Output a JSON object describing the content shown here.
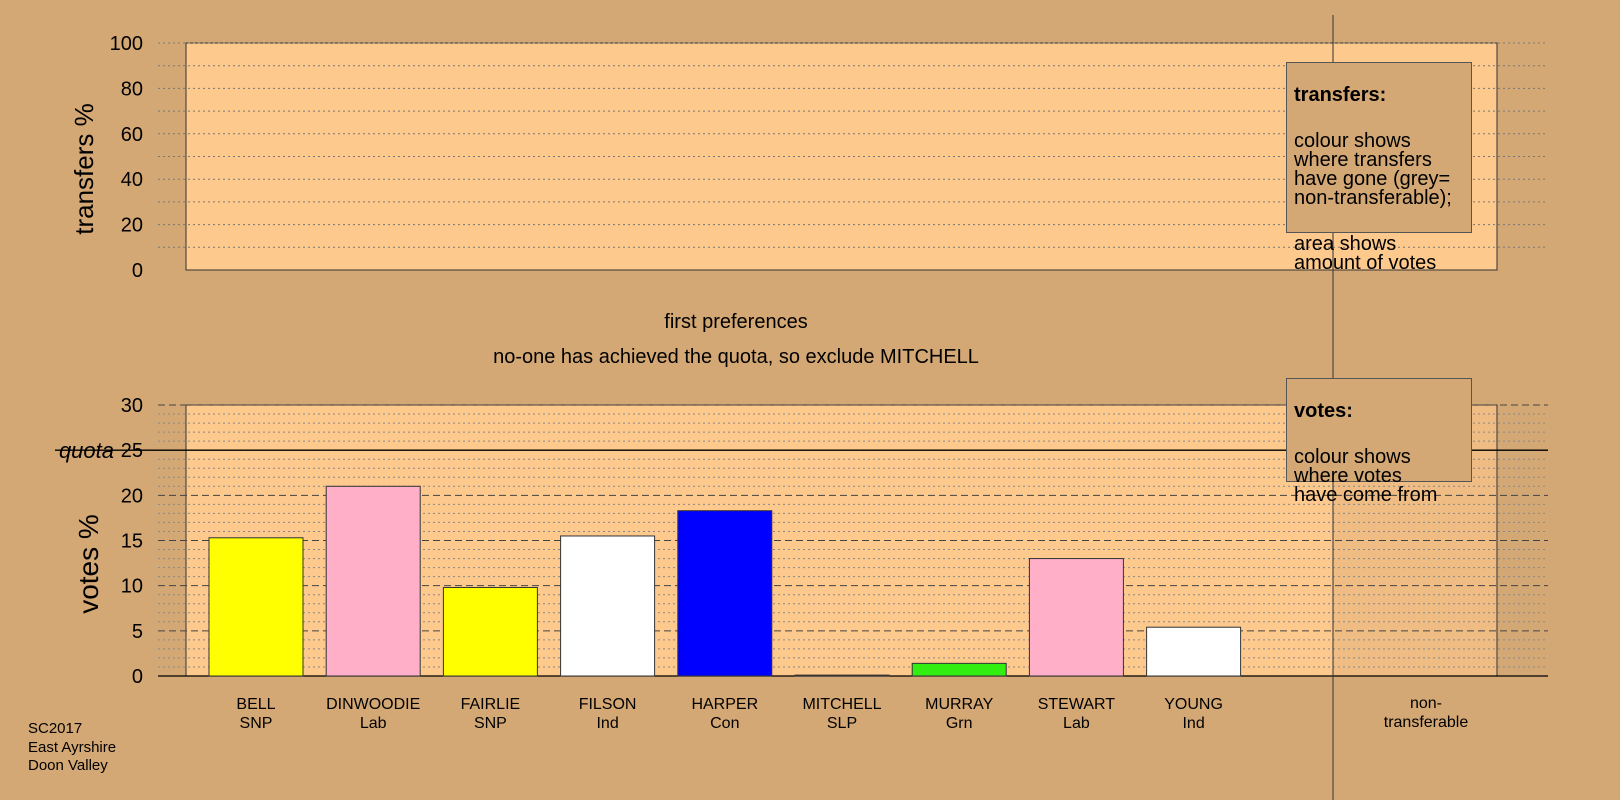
{
  "top_panel": {
    "ylabel": "transfers %",
    "ticks": [
      0,
      20,
      40,
      60,
      80,
      100
    ]
  },
  "bottom_panel": {
    "ylabel": "votes %",
    "ticks": [
      0,
      5,
      10,
      15,
      20,
      25,
      30
    ],
    "quota_label": "quota"
  },
  "headline": "first preferences",
  "subline": "no-one has achieved the quota, so exclude MITCHELL",
  "legend_transfers": {
    "title": "transfers:",
    "text1": "colour shows\nwhere transfers\nhave gone (grey=\nnon-transferable);",
    "text2": "area shows\namount of votes"
  },
  "legend_votes": {
    "title": "votes:",
    "text1": "colour shows\nwhere votes\nhave come from"
  },
  "footer": {
    "line1": "SC2017",
    "line2": "East Ayrshire",
    "line3": "Doon Valley"
  },
  "colors": {
    "background": "#d4a875",
    "panel": "#fec98d"
  },
  "chart_data": [
    {
      "type": "bar",
      "ylabel": "votes %",
      "ylim": [
        0,
        30
      ],
      "quota": 25,
      "categories": [
        "BELL",
        "DINWOODIE",
        "FAIRLIE",
        "FILSON",
        "HARPER",
        "MITCHELL",
        "MURRAY",
        "STEWART",
        "YOUNG",
        "non-transferable"
      ],
      "parties": [
        "SNP",
        "Lab",
        "SNP",
        "Ind",
        "Con",
        "SLP",
        "Grn",
        "Lab",
        "Ind",
        ""
      ],
      "values": [
        15.3,
        21.0,
        9.8,
        15.5,
        18.3,
        0.1,
        1.4,
        13.0,
        5.4,
        0
      ],
      "bar_colors": [
        "#ffff00",
        "#ffb0c8",
        "#ffff00",
        "#ffffff",
        "#0000ff",
        "#800000",
        "#33ee11",
        "#ffb0c8",
        "#ffffff",
        "#aaaaaa"
      ],
      "grid": true
    },
    {
      "type": "bar",
      "ylabel": "transfers %",
      "ylim": [
        0,
        100
      ],
      "categories": [],
      "values": [],
      "grid": true
    }
  ]
}
